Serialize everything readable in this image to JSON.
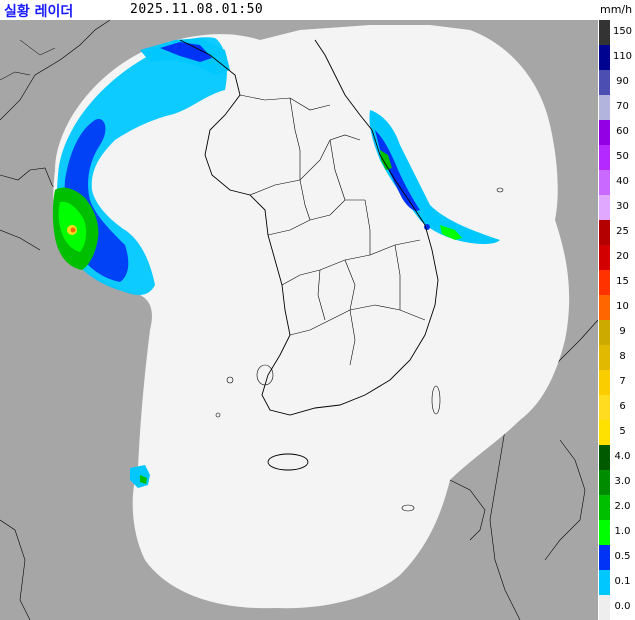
{
  "header": {
    "title": "실황 레이더",
    "timestamp": "2025.11.08.01:50",
    "unit": "mm/h"
  },
  "legend": {
    "labels": [
      "150",
      "110",
      "90",
      "70",
      "60",
      "50",
      "40",
      "30",
      "25",
      "20",
      "15",
      "10",
      "9",
      "8",
      "7",
      "6",
      "5",
      "4.0",
      "3.0",
      "2.0",
      "1.0",
      "0.5",
      "0.1",
      "0.0"
    ],
    "colors": [
      "#333333",
      "#000390",
      "#4C4EB1",
      "#B3B4DE",
      "#9300E4",
      "#B329FF",
      "#C969FF",
      "#E0A9FF",
      "#B40000",
      "#D20000",
      "#FF3200",
      "#FF6600",
      "#CCAA00",
      "#E0B900",
      "#F9CD00",
      "#FFDC1F",
      "#FFE100",
      "#005A00",
      "#008C00",
      "#00BE00",
      "#00FF00",
      "#0033F5",
      "#00C8FF",
      "#EEEEEE"
    ]
  },
  "map": {
    "colors": {
      "land_outside": "#a6a6a6",
      "radar_coverage": "#f4f4f4",
      "boundary_line": "#000000"
    }
  }
}
